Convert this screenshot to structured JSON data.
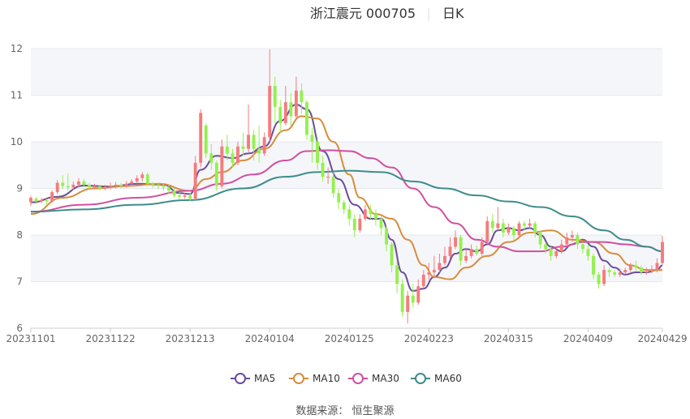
{
  "title": {
    "stock": "浙江震元 000705",
    "period": "日K"
  },
  "source": "数据来源： 恒生聚源",
  "colors": {
    "up": "#f47c7c",
    "down": "#95f04f",
    "grid": "#e4e8f2",
    "plot_bg_band": "#f5f6fa",
    "axis": "#cccccc"
  },
  "chart_data": {
    "type": "candlestick",
    "ylim": [
      6,
      12
    ],
    "yticks": [
      6,
      7,
      8,
      9,
      10,
      11,
      12
    ],
    "xlabels": [
      "20231101",
      "20231122",
      "20231213",
      "20240104",
      "20240125",
      "20240223",
      "20240315",
      "20240409",
      "20240429"
    ],
    "xlabel_index": [
      0,
      15,
      30,
      45,
      60,
      75,
      90,
      105,
      119
    ],
    "n": 120,
    "candles": [
      [
        8.7,
        8.8,
        8.62,
        8.84
      ],
      [
        8.78,
        8.72,
        8.66,
        8.82
      ],
      [
        8.72,
        8.75,
        8.68,
        8.8
      ],
      [
        8.75,
        8.72,
        8.65,
        8.78
      ],
      [
        8.72,
        8.92,
        8.7,
        8.96
      ],
      [
        8.92,
        9.12,
        8.88,
        9.18
      ],
      [
        9.12,
        9.05,
        8.98,
        9.28
      ],
      [
        9.05,
        9.02,
        8.95,
        9.32
      ],
      [
        9.02,
        9.08,
        8.96,
        9.15
      ],
      [
        9.08,
        9.15,
        9.02,
        9.22
      ],
      [
        9.15,
        9.08,
        9.02,
        9.2
      ],
      [
        9.08,
        9.02,
        8.98,
        9.12
      ],
      [
        9.02,
        9.05,
        8.98,
        9.1
      ],
      [
        9.05,
        9.0,
        8.95,
        9.08
      ],
      [
        9.0,
        9.04,
        8.96,
        9.08
      ],
      [
        9.04,
        9.06,
        8.98,
        9.12
      ],
      [
        9.06,
        9.08,
        9.0,
        9.14
      ],
      [
        9.08,
        9.05,
        9.0,
        9.12
      ],
      [
        9.05,
        9.1,
        9.02,
        9.16
      ],
      [
        9.1,
        9.15,
        9.05,
        9.2
      ],
      [
        9.15,
        9.22,
        9.1,
        9.28
      ],
      [
        9.22,
        9.3,
        9.15,
        9.35
      ],
      [
        9.3,
        9.1,
        9.05,
        9.34
      ],
      [
        9.1,
        9.08,
        9.02,
        9.14
      ],
      [
        9.08,
        9.05,
        8.98,
        9.12
      ],
      [
        9.05,
        9.02,
        8.96,
        9.1
      ],
      [
        9.02,
        8.95,
        8.88,
        9.08
      ],
      [
        8.95,
        8.85,
        8.8,
        9.0
      ],
      [
        8.85,
        8.82,
        8.76,
        8.92
      ],
      [
        8.82,
        8.85,
        8.78,
        8.9
      ],
      [
        8.85,
        8.78,
        8.72,
        8.9
      ],
      [
        8.78,
        9.55,
        8.75,
        9.7
      ],
      [
        9.55,
        10.62,
        9.45,
        10.7
      ],
      [
        10.35,
        9.75,
        9.65,
        10.4
      ],
      [
        9.75,
        9.55,
        9.4,
        9.95
      ],
      [
        9.55,
        9.05,
        8.95,
        9.6
      ],
      [
        9.05,
        9.9,
        9.0,
        10.05
      ],
      [
        9.9,
        9.75,
        9.6,
        10.15
      ],
      [
        9.75,
        9.55,
        9.45,
        9.85
      ],
      [
        9.55,
        9.9,
        9.5,
        10.0
      ],
      [
        9.9,
        9.85,
        9.7,
        10.2
      ],
      [
        9.85,
        10.15,
        9.75,
        10.8
      ],
      [
        10.15,
        9.85,
        9.6,
        10.25
      ],
      [
        9.85,
        9.75,
        9.55,
        10.35
      ],
      [
        9.75,
        10.1,
        9.7,
        10.2
      ],
      [
        10.1,
        11.2,
        10.0,
        11.98
      ],
      [
        11.2,
        10.75,
        10.4,
        11.4
      ],
      [
        10.75,
        10.4,
        10.2,
        10.9
      ],
      [
        10.4,
        10.85,
        10.35,
        11.2
      ],
      [
        10.85,
        10.55,
        10.35,
        11.05
      ],
      [
        10.55,
        11.1,
        10.5,
        11.4
      ],
      [
        11.1,
        10.85,
        10.6,
        11.25
      ],
      [
        10.85,
        10.15,
        10.05,
        10.9
      ],
      [
        10.15,
        10.0,
        9.55,
        10.3
      ],
      [
        10.0,
        9.55,
        9.4,
        10.1
      ],
      [
        9.55,
        9.25,
        9.15,
        9.7
      ],
      [
        9.25,
        9.25,
        9.1,
        9.45
      ],
      [
        9.25,
        8.9,
        8.8,
        9.35
      ],
      [
        8.9,
        8.7,
        8.55,
        9.0
      ],
      [
        8.7,
        8.55,
        8.45,
        8.75
      ],
      [
        8.55,
        8.35,
        8.2,
        8.65
      ],
      [
        8.35,
        8.1,
        7.95,
        8.45
      ],
      [
        8.1,
        8.35,
        8.05,
        8.45
      ],
      [
        8.35,
        8.55,
        8.3,
        8.65
      ],
      [
        8.55,
        8.45,
        8.35,
        8.65
      ],
      [
        8.45,
        8.35,
        8.2,
        8.55
      ],
      [
        8.35,
        8.15,
        8.0,
        8.4
      ],
      [
        8.15,
        7.8,
        7.65,
        8.2
      ],
      [
        7.8,
        7.35,
        7.2,
        7.85
      ],
      [
        7.35,
        6.95,
        6.75,
        7.45
      ],
      [
        6.95,
        6.35,
        6.25,
        7.05
      ],
      [
        6.35,
        6.7,
        6.1,
        6.8
      ],
      [
        6.7,
        6.55,
        6.45,
        6.95
      ],
      [
        6.55,
        6.9,
        6.5,
        7.05
      ],
      [
        6.9,
        7.15,
        6.85,
        7.25
      ],
      [
        7.15,
        7.2,
        7.05,
        7.4
      ],
      [
        7.2,
        7.25,
        7.1,
        7.55
      ],
      [
        7.25,
        7.4,
        7.2,
        7.6
      ],
      [
        7.4,
        7.55,
        7.35,
        7.75
      ],
      [
        7.55,
        7.75,
        7.5,
        7.95
      ],
      [
        7.75,
        7.95,
        7.7,
        8.1
      ],
      [
        7.95,
        7.45,
        7.35,
        8.0
      ],
      [
        7.45,
        7.55,
        7.4,
        7.7
      ],
      [
        7.55,
        7.7,
        7.5,
        7.8
      ],
      [
        7.7,
        7.6,
        7.55,
        7.78
      ],
      [
        7.6,
        7.85,
        7.55,
        7.95
      ],
      [
        7.85,
        8.3,
        7.8,
        8.4
      ],
      [
        8.3,
        8.15,
        8.05,
        8.45
      ],
      [
        8.15,
        8.25,
        8.1,
        8.6
      ],
      [
        8.25,
        8.05,
        7.95,
        8.35
      ],
      [
        8.05,
        8.15,
        8.0,
        8.25
      ],
      [
        8.15,
        8.0,
        7.9,
        8.2
      ],
      [
        8.0,
        8.25,
        7.95,
        8.3
      ],
      [
        8.25,
        8.2,
        8.1,
        8.3
      ],
      [
        8.2,
        8.25,
        8.15,
        8.35
      ],
      [
        8.25,
        8.05,
        7.95,
        8.3
      ],
      [
        8.05,
        7.8,
        7.7,
        8.1
      ],
      [
        7.8,
        7.7,
        7.6,
        7.85
      ],
      [
        7.7,
        7.55,
        7.45,
        7.75
      ],
      [
        7.55,
        7.65,
        7.5,
        7.75
      ],
      [
        7.65,
        7.8,
        7.6,
        7.9
      ],
      [
        7.8,
        7.95,
        7.75,
        8.05
      ],
      [
        7.95,
        8.0,
        7.85,
        8.1
      ],
      [
        8.0,
        7.8,
        7.7,
        8.05
      ],
      [
        7.8,
        7.7,
        7.6,
        7.85
      ],
      [
        7.7,
        7.55,
        7.45,
        7.8
      ],
      [
        7.55,
        7.15,
        7.05,
        7.6
      ],
      [
        7.15,
        6.95,
        6.85,
        7.2
      ],
      [
        6.95,
        7.25,
        6.9,
        7.35
      ],
      [
        7.25,
        7.2,
        7.1,
        7.3
      ],
      [
        7.2,
        7.15,
        7.1,
        7.25
      ],
      [
        7.15,
        7.2,
        7.1,
        7.28
      ],
      [
        7.2,
        7.25,
        7.15,
        7.3
      ],
      [
        7.25,
        7.35,
        7.2,
        7.4
      ],
      [
        7.35,
        7.3,
        7.22,
        7.45
      ],
      [
        7.3,
        7.2,
        7.15,
        7.35
      ],
      [
        7.2,
        7.22,
        7.15,
        7.3
      ],
      [
        7.22,
        7.25,
        7.18,
        7.35
      ],
      [
        7.25,
        7.4,
        7.2,
        7.5
      ],
      [
        7.4,
        7.85,
        7.35,
        7.98
      ]
    ],
    "series": [
      {
        "name": "MA5",
        "color": "#6a4c9c",
        "points": [
          [
            0,
            8.7
          ],
          [
            5,
            8.82
          ],
          [
            10,
            9.06
          ],
          [
            15,
            9.04
          ],
          [
            20,
            9.1
          ],
          [
            25,
            9.08
          ],
          [
            28,
            8.9
          ],
          [
            30,
            8.88
          ],
          [
            32,
            9.4
          ],
          [
            35,
            9.7
          ],
          [
            38,
            9.65
          ],
          [
            41,
            9.75
          ],
          [
            44,
            9.9
          ],
          [
            47,
            10.45
          ],
          [
            50,
            10.8
          ],
          [
            52,
            10.7
          ],
          [
            55,
            9.8
          ],
          [
            58,
            9.2
          ],
          [
            61,
            8.65
          ],
          [
            64,
            8.35
          ],
          [
            66,
            8.35
          ],
          [
            68,
            7.9
          ],
          [
            70,
            7.2
          ],
          [
            72,
            6.8
          ],
          [
            74,
            6.85
          ],
          [
            76,
            7.1
          ],
          [
            78,
            7.3
          ],
          [
            80,
            7.6
          ],
          [
            82,
            7.7
          ],
          [
            84,
            7.65
          ],
          [
            86,
            7.8
          ],
          [
            88,
            8.1
          ],
          [
            90,
            8.15
          ],
          [
            92,
            8.1
          ],
          [
            94,
            8.15
          ],
          [
            96,
            8.0
          ],
          [
            98,
            7.75
          ],
          [
            100,
            7.65
          ],
          [
            102,
            7.8
          ],
          [
            104,
            7.9
          ],
          [
            106,
            7.75
          ],
          [
            108,
            7.45
          ],
          [
            110,
            7.3
          ],
          [
            112,
            7.15
          ],
          [
            114,
            7.2
          ],
          [
            116,
            7.2
          ],
          [
            118,
            7.25
          ],
          [
            119,
            7.35
          ]
        ]
      },
      {
        "name": "MA10",
        "color": "#d78d3d",
        "points": [
          [
            0,
            8.45
          ],
          [
            6,
            8.8
          ],
          [
            12,
            9.0
          ],
          [
            18,
            9.05
          ],
          [
            24,
            9.1
          ],
          [
            30,
            8.95
          ],
          [
            33,
            9.2
          ],
          [
            36,
            9.35
          ],
          [
            40,
            9.6
          ],
          [
            44,
            9.85
          ],
          [
            48,
            10.25
          ],
          [
            51,
            10.55
          ],
          [
            54,
            10.5
          ],
          [
            57,
            10.0
          ],
          [
            60,
            9.3
          ],
          [
            62,
            8.8
          ],
          [
            65,
            8.45
          ],
          [
            68,
            8.35
          ],
          [
            71,
            7.9
          ],
          [
            74,
            7.35
          ],
          [
            76,
            7.1
          ],
          [
            79,
            7.05
          ],
          [
            82,
            7.3
          ],
          [
            86,
            7.55
          ],
          [
            90,
            7.85
          ],
          [
            94,
            8.05
          ],
          [
            98,
            8.1
          ],
          [
            102,
            7.9
          ],
          [
            106,
            7.85
          ],
          [
            110,
            7.6
          ],
          [
            113,
            7.35
          ],
          [
            116,
            7.25
          ],
          [
            119,
            7.25
          ]
        ]
      },
      {
        "name": "MA30",
        "color": "#d050a0",
        "points": [
          [
            0,
            8.5
          ],
          [
            10,
            8.65
          ],
          [
            20,
            8.8
          ],
          [
            30,
            8.95
          ],
          [
            36,
            9.1
          ],
          [
            42,
            9.3
          ],
          [
            48,
            9.6
          ],
          [
            52,
            9.8
          ],
          [
            56,
            9.82
          ],
          [
            60,
            9.8
          ],
          [
            64,
            9.65
          ],
          [
            68,
            9.45
          ],
          [
            72,
            9.0
          ],
          [
            76,
            8.6
          ],
          [
            80,
            8.25
          ],
          [
            84,
            7.9
          ],
          [
            88,
            7.75
          ],
          [
            92,
            7.65
          ],
          [
            96,
            7.65
          ],
          [
            100,
            7.75
          ],
          [
            104,
            7.85
          ],
          [
            108,
            7.85
          ],
          [
            112,
            7.8
          ],
          [
            116,
            7.75
          ],
          [
            119,
            7.65
          ]
        ]
      },
      {
        "name": "MA60",
        "color": "#3e8c8c",
        "points": [
          [
            0,
            8.5
          ],
          [
            10,
            8.55
          ],
          [
            20,
            8.65
          ],
          [
            30,
            8.75
          ],
          [
            40,
            9.0
          ],
          [
            48,
            9.25
          ],
          [
            54,
            9.35
          ],
          [
            60,
            9.38
          ],
          [
            66,
            9.35
          ],
          [
            72,
            9.15
          ],
          [
            78,
            9.0
          ],
          [
            84,
            8.85
          ],
          [
            90,
            8.72
          ],
          [
            96,
            8.6
          ],
          [
            102,
            8.4
          ],
          [
            108,
            8.1
          ],
          [
            112,
            7.9
          ],
          [
            116,
            7.75
          ],
          [
            119,
            7.65
          ]
        ]
      }
    ]
  }
}
